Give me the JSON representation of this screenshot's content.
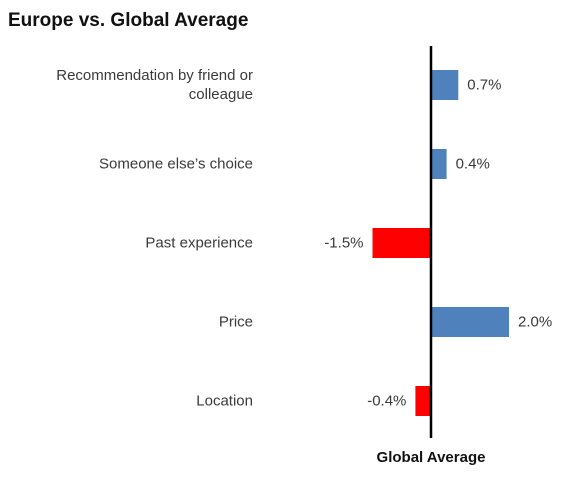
{
  "chart_data": {
    "type": "bar",
    "orientation": "horizontal",
    "title": "Europe vs. Global Average",
    "xlabel": "Global Average",
    "ylabel": "",
    "categories": [
      [
        "Recommendation by friend or",
        "colleague"
      ],
      [
        "Someone else’s choice"
      ],
      [
        "Past experience"
      ],
      [
        "Price"
      ],
      [
        "Location"
      ]
    ],
    "values": [
      0.7,
      0.4,
      -1.5,
      2.0,
      -0.4
    ],
    "value_labels": [
      "0.7%",
      "0.4%",
      "-1.5%",
      "2.0%",
      "-0.4%"
    ],
    "colors": {
      "positive": "#4f81bd",
      "negative": "#ff0000",
      "axis": "#000000"
    },
    "xlim": [
      -1.5,
      2.0
    ],
    "grid": false,
    "legend": "none"
  }
}
